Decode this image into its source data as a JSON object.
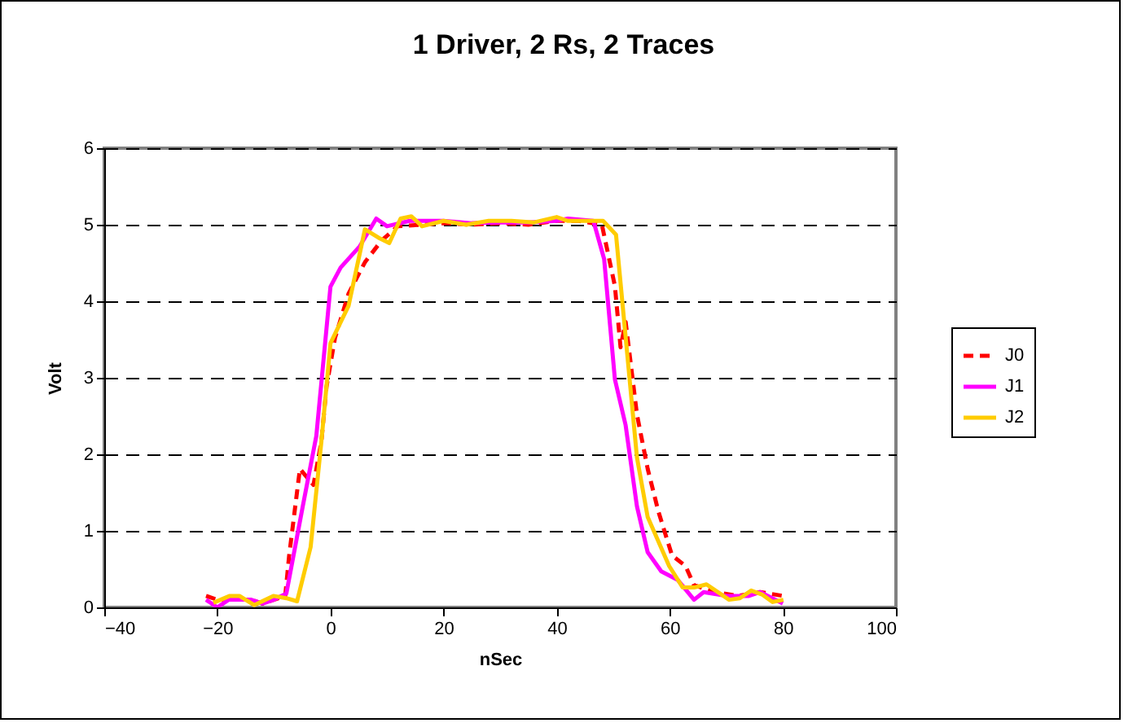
{
  "chart_data": {
    "type": "line",
    "title": "1 Driver, 2 Rs, 2 Traces",
    "xlabel": "nSec",
    "ylabel": "Volt",
    "xlim": [
      -40,
      100
    ],
    "xticks": [
      -40,
      -20,
      0,
      20,
      40,
      60,
      80,
      100
    ],
    "ylim": [
      0,
      6
    ],
    "yticks": [
      0,
      1,
      2,
      3,
      4,
      5,
      6
    ],
    "grid": "y",
    "legend": "right",
    "marker": "none",
    "series": [
      {
        "name": "J0",
        "color": "#ff0000",
        "line_style": "dashed",
        "x": [
          -22,
          -20,
          -18,
          -16,
          -14,
          -12,
          -10,
          -8,
          -7.3,
          -5.4,
          -3,
          -1.6,
          -0.7,
          0.8,
          3.2,
          6.1,
          9,
          11.9,
          16,
          20,
          25,
          30,
          35,
          40,
          44,
          48,
          50.3,
          51.3,
          52.2,
          54.2,
          56.1,
          58,
          60.4,
          62.8,
          64.3,
          68,
          72,
          76,
          80
        ],
        "values": [
          0.15,
          0.1,
          0.1,
          0.1,
          0.1,
          0.05,
          0.1,
          0.15,
          0.68,
          1.81,
          1.6,
          2.17,
          2.88,
          3.52,
          4.1,
          4.51,
          4.79,
          4.98,
          5.0,
          5.02,
          5.0,
          5.02,
          5.0,
          5.05,
          5.05,
          5.0,
          4.2,
          3.4,
          3.73,
          2.52,
          1.81,
          1.25,
          0.68,
          0.54,
          0.29,
          0.2,
          0.15,
          0.2,
          0.15
        ]
      },
      {
        "name": "J1",
        "color": "#ff00ff",
        "line_style": "solid",
        "x": [
          -22,
          -20,
          -18,
          -16,
          -14,
          -12,
          -10,
          -7.8,
          -4.9,
          -2.5,
          0,
          1.8,
          5.2,
          8.1,
          10,
          14,
          20,
          25,
          30,
          35,
          40,
          42,
          46.5,
          48.4,
          50.3,
          52.2,
          54.2,
          56.1,
          58.5,
          61.4,
          64.3,
          66,
          70,
          74,
          76,
          80
        ],
        "values": [
          0.1,
          0.0,
          0.1,
          0.1,
          0.1,
          0.05,
          0.1,
          0.18,
          1.32,
          2.24,
          4.19,
          4.44,
          4.72,
          5.08,
          4.98,
          5.05,
          5.05,
          5.02,
          5.03,
          5.03,
          5.05,
          5.08,
          5.05,
          4.55,
          2.98,
          2.38,
          1.32,
          0.72,
          0.47,
          0.36,
          0.1,
          0.2,
          0.15,
          0.15,
          0.2,
          0.05
        ]
      },
      {
        "name": "J2",
        "color": "#ffcc00",
        "line_style": "solid",
        "x": [
          -20.7,
          -17.8,
          -16.1,
          -13.5,
          -10.1,
          -7.8,
          -5.9,
          -3.5,
          -1.6,
          0,
          3.2,
          6.1,
          8.5,
          10.4,
          12.4,
          14.3,
          16.2,
          20,
          24,
          28,
          32,
          36,
          40,
          42,
          46,
          48.2,
          50.5,
          54.2,
          56.1,
          59.9,
          62.3,
          64.3,
          66.5,
          70.5,
          72.4,
          74.4,
          76.3,
          78.2,
          80.1
        ],
        "values": [
          0.06,
          0.15,
          0.15,
          0.03,
          0.15,
          0.12,
          0.08,
          0.79,
          2.17,
          3.45,
          3.94,
          4.94,
          4.83,
          4.76,
          5.08,
          5.11,
          4.98,
          5.05,
          5.0,
          5.05,
          5.05,
          5.03,
          5.1,
          5.05,
          5.05,
          5.05,
          4.87,
          1.96,
          1.18,
          0.54,
          0.26,
          0.26,
          0.3,
          0.1,
          0.12,
          0.22,
          0.17,
          0.07,
          0.1
        ]
      }
    ]
  }
}
